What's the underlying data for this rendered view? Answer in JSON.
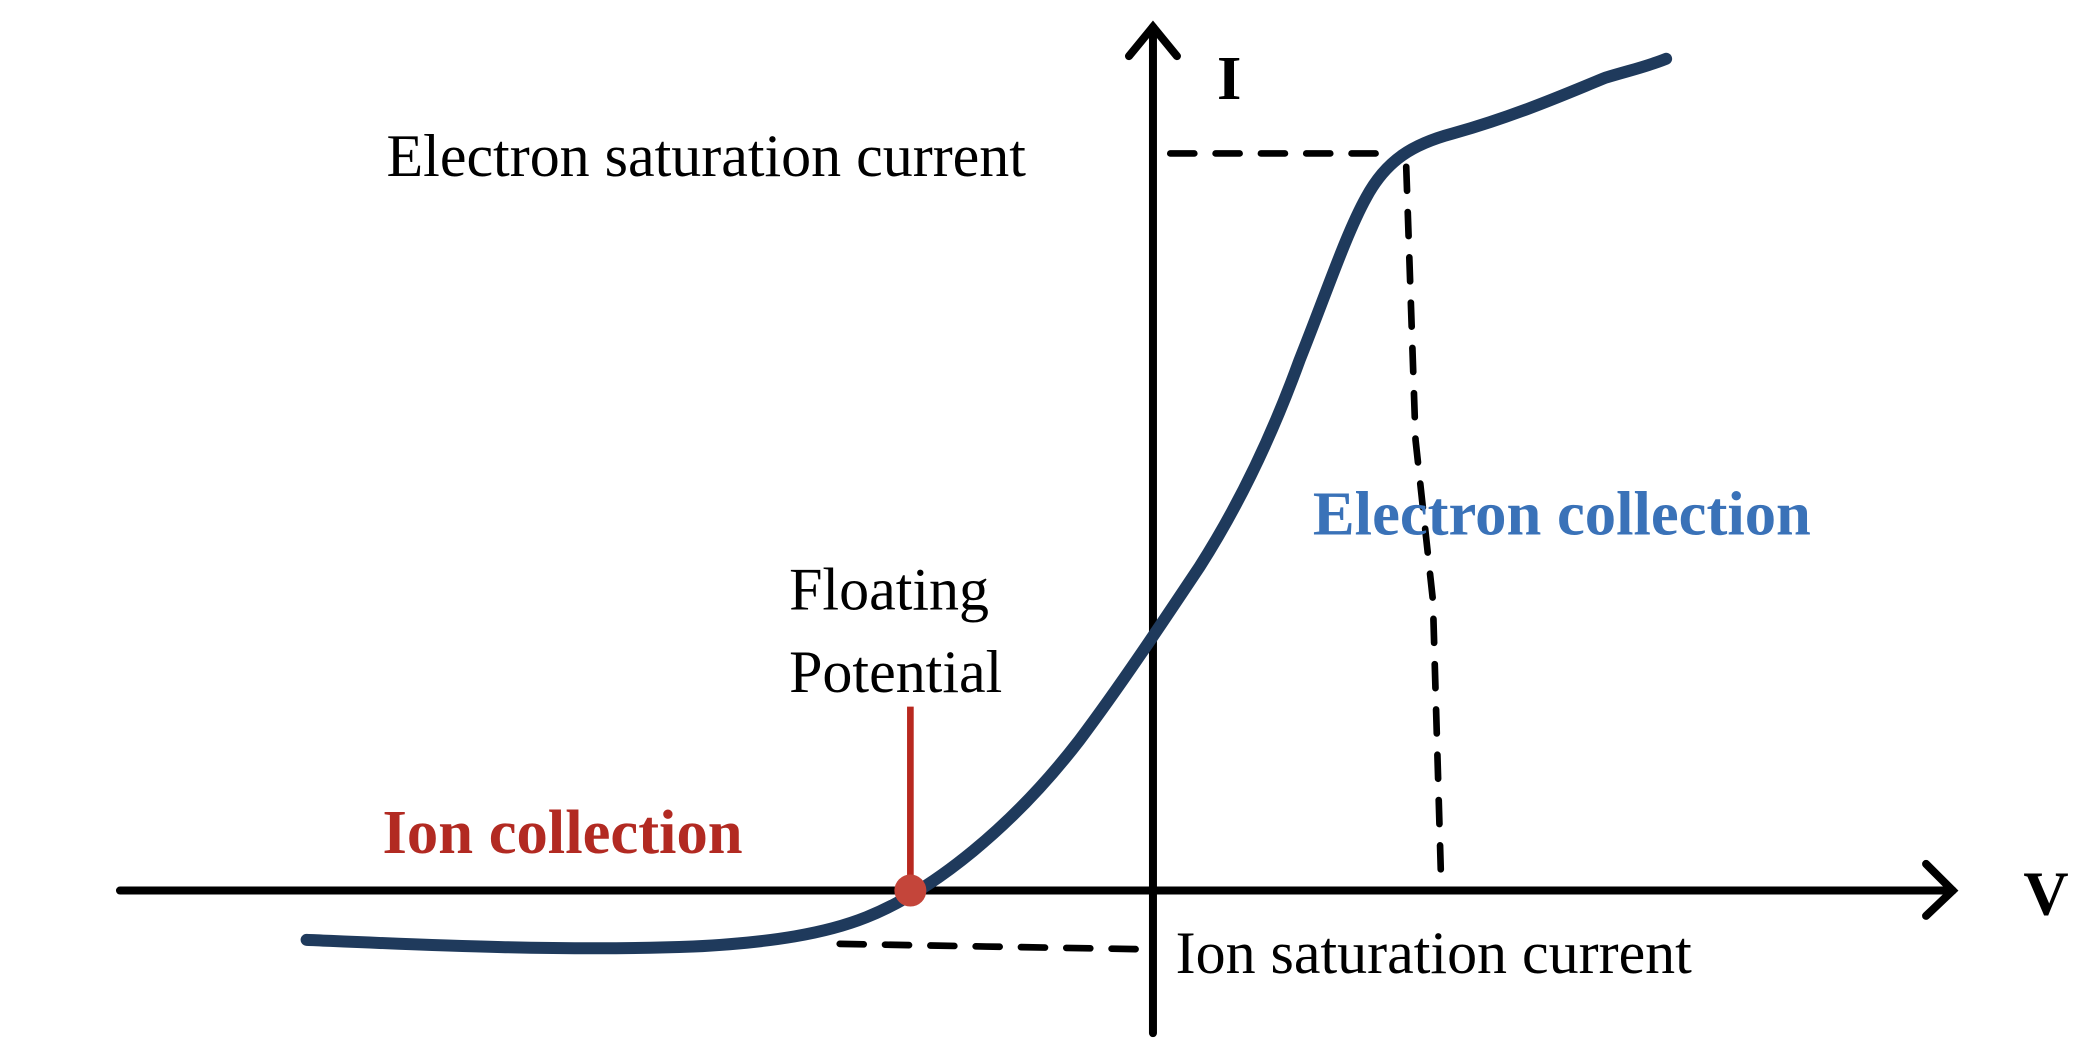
{
  "axes": {
    "y_label": "I",
    "x_label": "V"
  },
  "annotations": {
    "electron_saturation": "Electron saturation current",
    "ion_saturation": "Ion saturation current",
    "floating_potential": [
      "Floating",
      "Potential"
    ],
    "ion_collection": "Ion collection",
    "electron_collection": "Electron collection"
  }
}
